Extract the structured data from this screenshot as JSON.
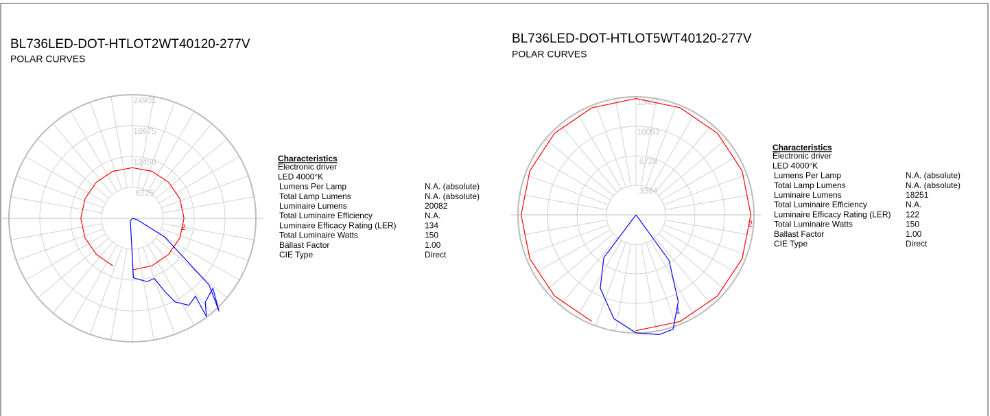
{
  "chart_data": [
    {
      "type": "polar",
      "title": "BL736LED-DOT-HTLOT2WT40120-277V",
      "subtitle": "POLAR CURVES",
      "rlim": [
        0,
        24901
      ],
      "rticks": [
        6225,
        12450,
        18675,
        24901
      ],
      "grid": true,
      "series": [
        {
          "name": "2",
          "color": "#ff0000",
          "angles": [
            0,
            22.5,
            45,
            67.5,
            90,
            112.5,
            135,
            157.5,
            180,
            202.5,
            225,
            247.5,
            270,
            292.5,
            315,
            337.5
          ],
          "values": [
            10400,
            10350,
            10300,
            10350,
            10400,
            10350,
            10300,
            10250,
            10200,
            10250,
            10300,
            10350,
            10400,
            10350,
            10300,
            10350
          ]
        },
        {
          "color": "#0000ff",
          "angles": [
            0,
            -37,
            1,
            13,
            20,
            24,
            27,
            33,
            39,
            37,
            41,
            49,
            43,
            49,
            60,
            74,
            0
          ],
          "values": [
            0,
            700,
            12000,
            13100,
            12900,
            16200,
            18900,
            20900,
            20200,
            24800,
            22400,
            21500,
            25600,
            20500,
            7500,
            1000,
            0
          ]
        }
      ],
      "characteristics": {
        "heading": "Characteristics",
        "rows": [
          [
            "Electronic driver"
          ],
          [
            "LED 4000°K"
          ],
          [
            "Lumens Per Lamp",
            "N.A. (absolute)"
          ],
          [
            "Total Lamp Lumens",
            "N.A. (absolute)"
          ],
          [
            "Luminaire Lumens",
            "20082"
          ],
          [
            "Total Luminaire Efficiency",
            "N.A."
          ],
          [
            "Luminaire Efficacy Rating (LER)",
            "134"
          ],
          [
            "Total Luminaire Watts",
            "150"
          ],
          [
            "Ballast Factor",
            "1.00"
          ],
          [
            "CIE Type",
            "Direct"
          ]
        ]
      }
    },
    {
      "type": "polar",
      "title": "BL736LED-DOT-HTLOT5WT40120-277V",
      "subtitle": "POLAR CURVES",
      "rlim": [
        0,
        13457
      ],
      "rticks": [
        3364,
        6728,
        10093,
        13457
      ],
      "grid": true,
      "series": [
        {
          "name": "2",
          "color": "#ff0000",
          "angles": [
            0,
            22.5,
            45,
            67.5,
            90,
            112.5,
            135,
            157.5,
            180,
            202.5,
            225,
            247.5,
            270,
            292.5,
            315,
            337.5
          ],
          "values": [
            13200,
            13150,
            13100,
            13100,
            13100,
            13100,
            13150,
            13200,
            13250,
            13200,
            13150,
            13100,
            13100,
            13100,
            13100,
            13150
          ]
        },
        {
          "name": "1",
          "color": "#0000ff",
          "angles": [
            0,
            -37,
            -26,
            -12,
            0,
            11,
            18,
            26,
            36,
            0
          ],
          "values": [
            0,
            6100,
            9300,
            12100,
            13450,
            13900,
            13700,
            11000,
            6400,
            0
          ]
        }
      ],
      "characteristics": {
        "heading": "Characteristics",
        "rows": [
          [
            "Electronic driver"
          ],
          [
            "LED 4000°K"
          ],
          [
            "Lumens Per Lamp",
            "N.A. (absolute)"
          ],
          [
            "Total Lamp Lumens",
            "N.A. (absolute)"
          ],
          [
            "Luminaire Lumens",
            "18251"
          ],
          [
            "Total Luminaire Efficiency",
            "N.A."
          ],
          [
            "Luminaire Efficacy Rating (LER)",
            "122"
          ],
          [
            "Total Luminaire Watts",
            "150"
          ],
          [
            "Ballast Factor",
            "1.00"
          ],
          [
            "CIE Type",
            "Direct"
          ]
        ]
      }
    }
  ]
}
